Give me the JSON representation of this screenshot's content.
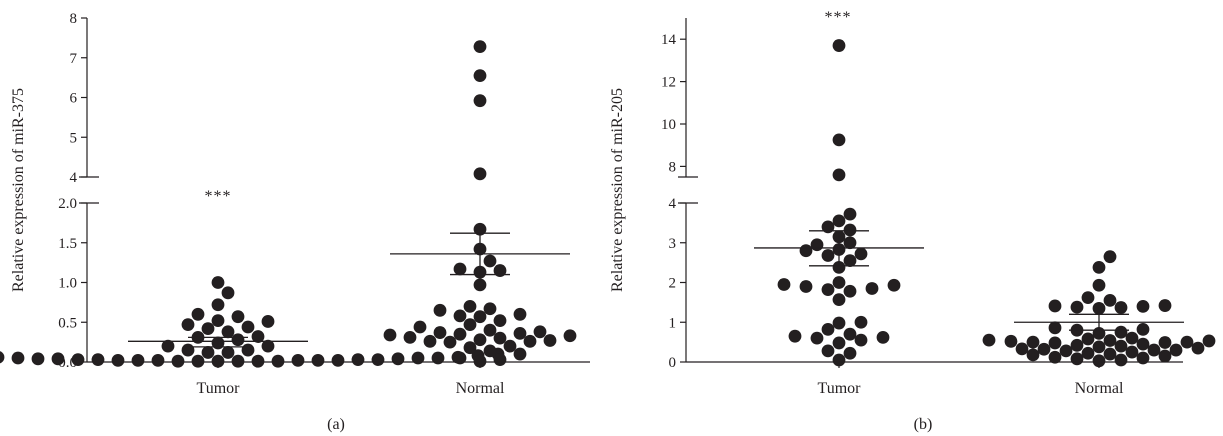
{
  "chart_data": [
    {
      "type": "scatter",
      "panel_label": "(a)",
      "ylabel": "Relative expression of miR-375",
      "categories": [
        "Tumor",
        "Normal"
      ],
      "significance": "***",
      "significance_group": "Tumor",
      "y_axis_broken": true,
      "ylim_lower": [
        0,
        2.0
      ],
      "ylim_upper": [
        4,
        8
      ],
      "yticks_lower": [
        "0.0",
        "0.5",
        "1.0",
        "1.5",
        "2.0"
      ],
      "yticks_upper": [
        "4",
        "5",
        "6",
        "7",
        "8"
      ],
      "series": [
        {
          "group": "Tumor",
          "mean": 0.26,
          "error_low": 0.19,
          "error_high": 0.31,
          "values": [
            0.51,
            0.44,
            0.38,
            0.31,
            0.72,
            1.0,
            0.87,
            0.6,
            0.57,
            0.32,
            0.28,
            0.42,
            0.47,
            0.52,
            0.2,
            0.15,
            0.12,
            0.1,
            0.08,
            0.07,
            0.06,
            0.05,
            0.04,
            0.04,
            0.03,
            0.03,
            0.02,
            0.02,
            0.02,
            0.01,
            0.01,
            0.01,
            0.01,
            0.01,
            0.01,
            0.02,
            0.02,
            0.02,
            0.03,
            0.03,
            0.04,
            0.05,
            0.05,
            0.06,
            0.08,
            0.1,
            0.12,
            0.15,
            0.2,
            0.24
          ]
        },
        {
          "group": "Normal",
          "mean": 1.36,
          "error_low": 1.1,
          "error_high": 1.62,
          "values": [
            7.28,
            6.55,
            5.92,
            4.08,
            1.67,
            1.42,
            1.27,
            1.17,
            1.15,
            1.13,
            0.97,
            0.7,
            0.67,
            0.65,
            0.6,
            0.58,
            0.57,
            0.52,
            0.47,
            0.44,
            0.4,
            0.38,
            0.37,
            0.36,
            0.35,
            0.34,
            0.33,
            0.31,
            0.3,
            0.28,
            0.27,
            0.26,
            0.26,
            0.25,
            0.2,
            0.18,
            0.14,
            0.1,
            0.05,
            0.03,
            0.01
          ]
        }
      ]
    },
    {
      "type": "scatter",
      "panel_label": "(b)",
      "ylabel": "Relative expression of miR-205",
      "categories": [
        "Tumor",
        "Normal"
      ],
      "significance": "***",
      "significance_group": "Tumor",
      "y_axis_broken": true,
      "ylim_lower": [
        0,
        4
      ],
      "ylim_upper": [
        7.5,
        15
      ],
      "yticks_lower": [
        "0",
        "1",
        "2",
        "3",
        "4"
      ],
      "yticks_upper": [
        "8",
        "10",
        "12",
        "14"
      ],
      "series": [
        {
          "group": "Tumor",
          "mean": 2.87,
          "error_low": 2.42,
          "error_high": 3.3,
          "values": [
            13.7,
            9.25,
            7.6,
            3.72,
            3.55,
            3.4,
            3.32,
            3.15,
            3.0,
            2.95,
            2.83,
            2.8,
            2.72,
            2.68,
            2.55,
            2.38,
            2.0,
            1.95,
            1.93,
            1.9,
            1.85,
            1.82,
            1.78,
            1.57,
            1.0,
            0.98,
            0.82,
            0.7,
            0.65,
            0.62,
            0.6,
            0.55,
            0.48,
            0.28,
            0.22,
            0.05
          ]
        },
        {
          "group": "Normal",
          "mean": 1.0,
          "error_low": 0.8,
          "error_high": 1.2,
          "values": [
            2.65,
            2.38,
            1.93,
            1.62,
            1.55,
            1.42,
            1.41,
            1.4,
            1.38,
            1.37,
            1.35,
            0.86,
            0.82,
            0.8,
            0.75,
            0.72,
            0.6,
            0.58,
            0.55,
            0.55,
            0.54,
            0.53,
            0.52,
            0.5,
            0.5,
            0.49,
            0.48,
            0.45,
            0.42,
            0.4,
            0.38,
            0.35,
            0.33,
            0.32,
            0.3,
            0.3,
            0.28,
            0.25,
            0.22,
            0.2,
            0.18,
            0.15,
            0.12,
            0.1,
            0.08,
            0.05,
            0.03
          ]
        }
      ]
    }
  ]
}
